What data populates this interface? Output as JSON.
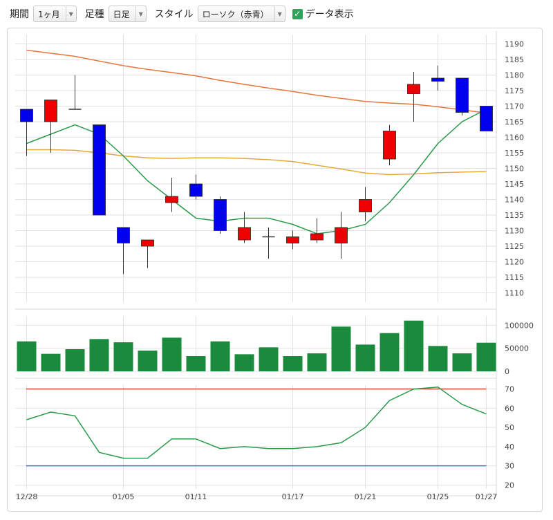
{
  "toolbar": {
    "period_label": "期間",
    "period_value": "1ヶ月",
    "bar_label": "足種",
    "bar_value": "日足",
    "style_label": "スタイル",
    "style_value": "ローソク（赤青）",
    "data_display_label": "データ表示",
    "data_display_checked": true,
    "dropdown_icon": "chevron-down-icon",
    "check_icon": "check-icon"
  },
  "chart_data": [
    {
      "type": "candlestick",
      "title": "",
      "ylim": [
        1107,
        1193
      ],
      "y_ticks": [
        1110,
        1115,
        1120,
        1125,
        1130,
        1135,
        1140,
        1145,
        1150,
        1155,
        1160,
        1165,
        1170,
        1175,
        1180,
        1185,
        1190
      ],
      "colors": {
        "up": "#ee0000",
        "down": "#0000ee",
        "sma_short": "#2a9a4a",
        "sma_mid": "#e8a838",
        "sma_long": "#e8743a"
      },
      "candles": [
        {
          "o": 1169,
          "h": 1169,
          "l": 1154,
          "c": 1165
        },
        {
          "o": 1165,
          "h": 1172,
          "l": 1155,
          "c": 1172
        },
        {
          "o": 1169,
          "h": 1180,
          "l": 1169,
          "c": 1169
        },
        {
          "o": 1164,
          "h": 1164,
          "l": 1135,
          "c": 1135
        },
        {
          "o": 1131,
          "h": 1131,
          "l": 1116,
          "c": 1126
        },
        {
          "o": 1125,
          "h": 1127,
          "l": 1118,
          "c": 1127
        },
        {
          "o": 1139,
          "h": 1147,
          "l": 1136,
          "c": 1141
        },
        {
          "o": 1145,
          "h": 1148,
          "l": 1140,
          "c": 1141
        },
        {
          "o": 1140,
          "h": 1141,
          "l": 1129,
          "c": 1130
        },
        {
          "o": 1127,
          "h": 1136,
          "l": 1126,
          "c": 1131
        },
        {
          "o": 1128,
          "h": 1131,
          "l": 1121,
          "c": 1128
        },
        {
          "o": 1126,
          "h": 1130,
          "l": 1124,
          "c": 1128
        },
        {
          "o": 1127,
          "h": 1134,
          "l": 1126,
          "c": 1129
        },
        {
          "o": 1126,
          "h": 1136,
          "l": 1121,
          "c": 1131
        },
        {
          "o": 1136,
          "h": 1144,
          "l": 1133,
          "c": 1140
        },
        {
          "o": 1153,
          "h": 1164,
          "l": 1151,
          "c": 1162
        },
        {
          "o": 1174,
          "h": 1181,
          "l": 1165,
          "c": 1177
        },
        {
          "o": 1179,
          "h": 1183,
          "l": 1175,
          "c": 1178
        },
        {
          "o": 1179,
          "h": 1179,
          "l": 1167,
          "c": 1168
        },
        {
          "o": 1170,
          "h": 1170,
          "l": 1162,
          "c": 1162
        }
      ],
      "sma_short": [
        1158,
        1161,
        1164,
        1161,
        1154,
        1146,
        1140,
        1134,
        1133,
        1134,
        1134,
        1132,
        1129,
        1130,
        1132,
        1139,
        1148,
        1158,
        1165,
        1169
      ],
      "sma_mid": [
        1156,
        1156,
        1155.8,
        1155,
        1154,
        1153.4,
        1153.2,
        1153.4,
        1153.4,
        1153.2,
        1152.8,
        1152.2,
        1151,
        1149.8,
        1148.5,
        1148,
        1148.2,
        1148.6,
        1148.8,
        1149
      ],
      "sma_long": [
        1188,
        1187,
        1186,
        1184.5,
        1183,
        1181.8,
        1180.8,
        1179.7,
        1178.3,
        1177,
        1175.8,
        1174.7,
        1173.5,
        1172.5,
        1171.5,
        1171,
        1170.6,
        1169.8,
        1168.8,
        1167.8
      ]
    },
    {
      "type": "bar",
      "title": "",
      "ylim": [
        0,
        120000
      ],
      "y_ticks": [
        0,
        50000,
        100000
      ],
      "color": "#1a8a3c",
      "values": [
        65000,
        38000,
        48000,
        70000,
        63000,
        45000,
        73000,
        33000,
        65000,
        37000,
        52000,
        33000,
        39000,
        97000,
        58000,
        83000,
        110000,
        55000,
        39000,
        62000
      ]
    },
    {
      "type": "line",
      "title": "",
      "ylim": [
        18,
        72
      ],
      "y_ticks": [
        20,
        30,
        40,
        50,
        60,
        70
      ],
      "color": "#2a9a4a",
      "upper_line": {
        "value": 70,
        "color": "#d24a2a"
      },
      "lower_line": {
        "value": 30,
        "color": "#3a72cc"
      },
      "values": [
        54,
        58,
        56,
        37,
        34,
        34,
        44,
        44,
        39,
        40,
        39,
        39,
        40,
        42,
        50,
        64,
        70,
        71,
        62,
        57
      ]
    }
  ],
  "x_labels": [
    {
      "i": 0,
      "label": "12/28"
    },
    {
      "i": 4,
      "label": "01/05"
    },
    {
      "i": 7,
      "label": "01/11"
    },
    {
      "i": 11,
      "label": "01/17"
    },
    {
      "i": 14,
      "label": "01/21"
    },
    {
      "i": 17,
      "label": "01/25"
    },
    {
      "i": 19,
      "label": "01/27"
    }
  ]
}
